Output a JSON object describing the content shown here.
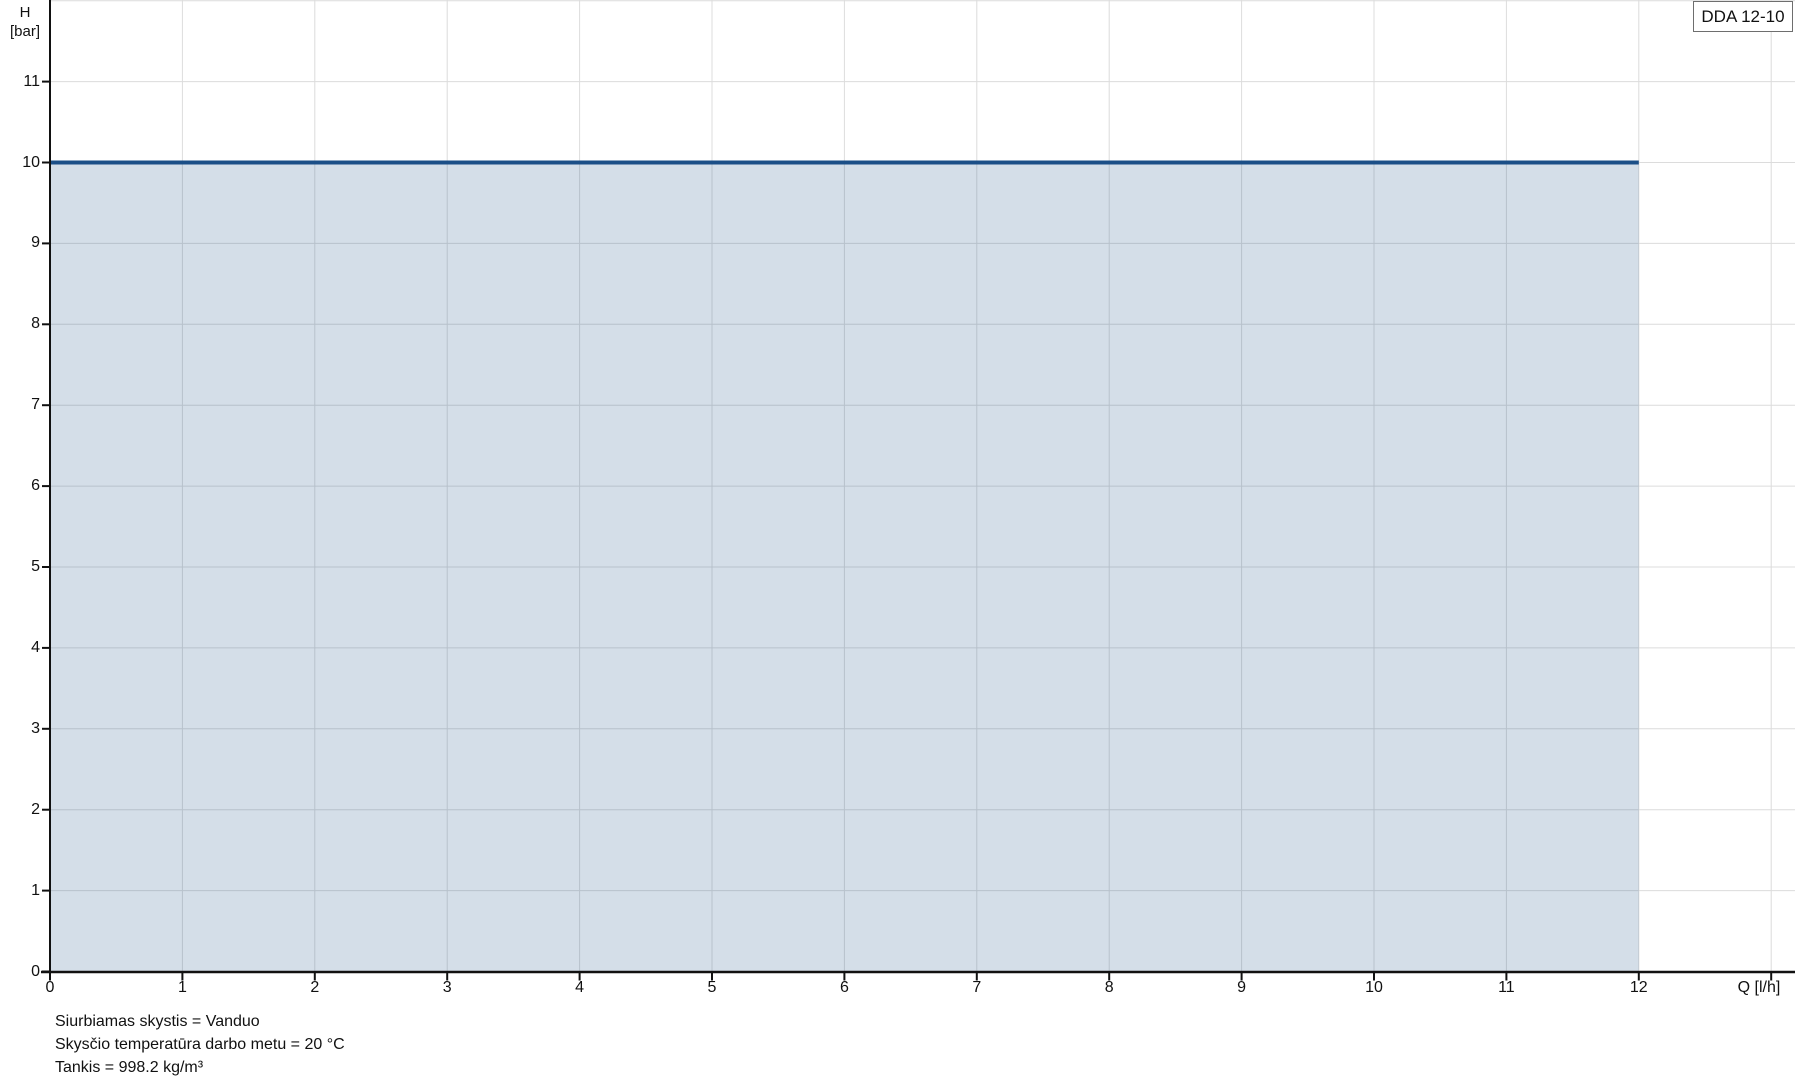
{
  "legend": {
    "label": "DDA 12-10"
  },
  "axes": {
    "y_title_line1": "H",
    "y_title_line2": "[bar]",
    "x_title": "Q [l/h]"
  },
  "footer": {
    "lines": [
      "Siurbiamas skystis = Vanduo",
      "Skysčio temperatūra darbo metu = 20 °C",
      "Tankis = 998.2 kg/m³"
    ]
  },
  "chart_data": {
    "type": "area",
    "title": "",
    "xlabel": "Q [l/h]",
    "ylabel": "H [bar]",
    "xlim": [
      0,
      13.18
    ],
    "ylim": [
      0,
      12
    ],
    "grid": true,
    "legend_position": "top-right",
    "series": [
      {
        "name": "DDA 12-10",
        "points": [
          [
            0,
            10
          ],
          [
            12,
            10
          ]
        ],
        "note": "constant pressure curve: H = 10 bar from Q = 0 to Q = 12 l/h, area under curve shaded"
      }
    ],
    "x_ticks": [
      0,
      1,
      2,
      3,
      4,
      5,
      6,
      7,
      8,
      9,
      10,
      11,
      12
    ],
    "y_ticks": [
      0,
      1,
      2,
      3,
      4,
      5,
      6,
      7,
      8,
      9,
      10,
      11
    ],
    "x_gridlines": [
      1,
      2,
      3,
      4,
      5,
      6,
      7,
      8,
      9,
      10,
      11,
      12,
      13
    ],
    "y_gridlines": [
      1,
      2,
      3,
      4,
      5,
      6,
      7,
      8,
      9,
      10,
      11,
      12
    ],
    "x_axis_label_tick": 13,
    "curve_color": "#1b4f87",
    "fill_color": "rgba(27,79,135,0.19)",
    "gridline_color": "#dcdcdc",
    "axis_color": "#111111"
  }
}
